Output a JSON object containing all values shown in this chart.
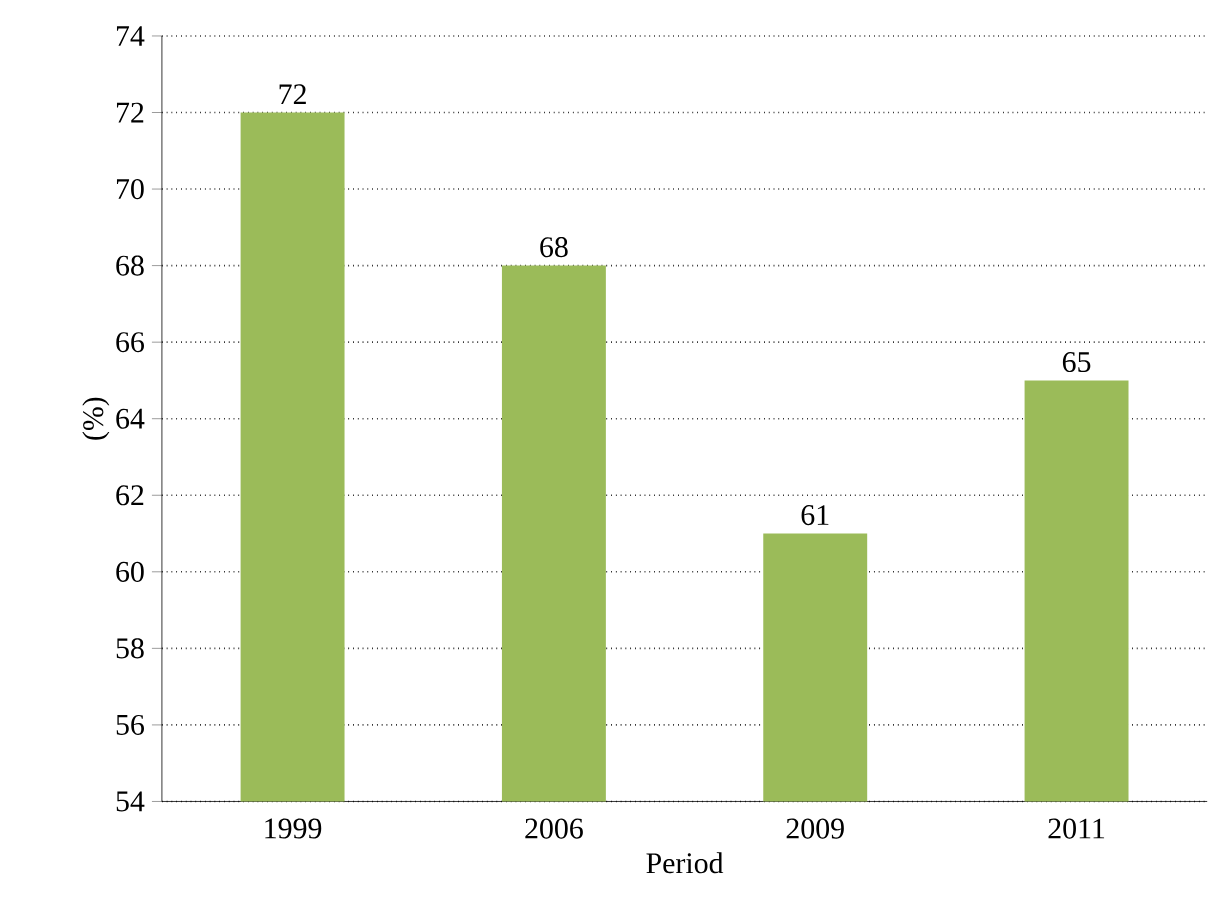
{
  "chart_data": {
    "type": "bar",
    "xlabel": "Period",
    "ylabel": "(%)",
    "categories": [
      "1999",
      "2006",
      "2009",
      "2011"
    ],
    "values": [
      72,
      68,
      61,
      65
    ],
    "color": "#9bbb59",
    "ylim": [
      54,
      74
    ],
    "yticks": [
      54,
      56,
      58,
      60,
      62,
      64,
      66,
      68,
      70,
      72,
      74
    ],
    "grid": "y",
    "data_labels": true
  }
}
